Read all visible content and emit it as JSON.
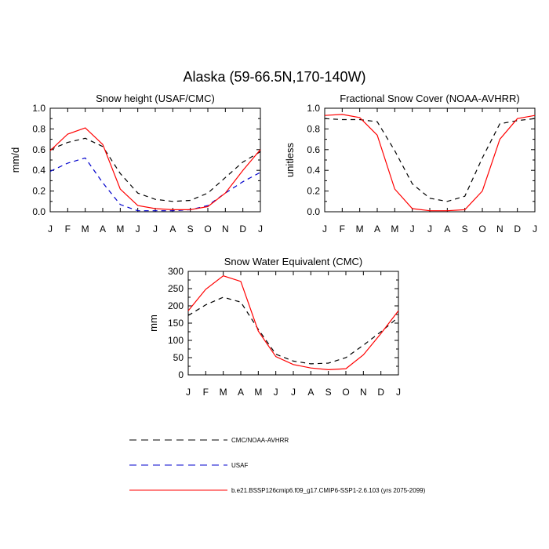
{
  "figure": {
    "title": "Alaska (59-66.5N,170-140W)"
  },
  "chart_data": [
    {
      "type": "line",
      "title": "Snow height (USAF/CMC)",
      "xlabel": "",
      "ylabel": "mm/d",
      "categories": [
        "J",
        "F",
        "M",
        "A",
        "M",
        "J",
        "J",
        "A",
        "S",
        "O",
        "N",
        "D",
        "J"
      ],
      "ylim": [
        0,
        1.0
      ],
      "yticks": [
        0.0,
        0.2,
        0.4,
        0.6,
        0.8,
        1.0
      ],
      "ytick_labels": [
        "0.0",
        "0.2",
        "0.4",
        "0.6",
        "0.8",
        "1.0"
      ],
      "grid": false,
      "series": [
        {
          "name": "CMC/NOAA-AVHRR",
          "color": "#000000",
          "dash": "dashed",
          "values": [
            0.6,
            0.67,
            0.71,
            0.63,
            0.37,
            0.18,
            0.12,
            0.1,
            0.11,
            0.18,
            0.33,
            0.48,
            0.58
          ]
        },
        {
          "name": "USAF",
          "color": "#0000cc",
          "dash": "dashed",
          "values": [
            0.39,
            0.47,
            0.52,
            0.28,
            0.07,
            0.01,
            0.01,
            0.01,
            0.02,
            0.06,
            0.18,
            0.29,
            0.38
          ]
        },
        {
          "name": "b.e21.BSSP126cmip6.f09_g17.CMIP6-SSP1-2.6.103 (yrs 2075-2099)",
          "color": "#ff0000",
          "dash": "solid",
          "values": [
            0.59,
            0.75,
            0.81,
            0.65,
            0.22,
            0.06,
            0.03,
            0.02,
            0.02,
            0.05,
            0.18,
            0.4,
            0.6
          ]
        }
      ]
    },
    {
      "type": "line",
      "title": "Fractional Snow Cover (NOAA-AVHRR)",
      "xlabel": "",
      "ylabel": "unitless",
      "categories": [
        "J",
        "F",
        "M",
        "A",
        "M",
        "J",
        "J",
        "A",
        "S",
        "O",
        "N",
        "D",
        "J"
      ],
      "ylim": [
        0,
        1.0
      ],
      "yticks": [
        0.0,
        0.2,
        0.4,
        0.6,
        0.8,
        1.0
      ],
      "ytick_labels": [
        "0.0",
        "0.2",
        "0.4",
        "0.6",
        "0.8",
        "1.0"
      ],
      "grid": false,
      "series": [
        {
          "name": "CMC/NOAA-AVHRR",
          "color": "#000000",
          "dash": "dashed",
          "values": [
            0.9,
            0.89,
            0.89,
            0.87,
            0.59,
            0.27,
            0.13,
            0.1,
            0.15,
            0.52,
            0.85,
            0.88,
            0.9
          ]
        },
        {
          "name": "b.e21.BSSP126cmip6.f09_g17.CMIP6-SSP1-2.6.103 (yrs 2075-2099)",
          "color": "#ff0000",
          "dash": "solid",
          "values": [
            0.93,
            0.94,
            0.91,
            0.74,
            0.22,
            0.03,
            0.01,
            0.01,
            0.02,
            0.2,
            0.7,
            0.9,
            0.93
          ]
        }
      ]
    },
    {
      "type": "line",
      "title": "Snow Water Equivalent (CMC)",
      "xlabel": "",
      "ylabel": "mm",
      "categories": [
        "J",
        "F",
        "M",
        "A",
        "M",
        "J",
        "J",
        "A",
        "S",
        "O",
        "N",
        "D",
        "J"
      ],
      "ylim": [
        0,
        300
      ],
      "yticks": [
        0,
        50,
        100,
        150,
        200,
        250,
        300
      ],
      "ytick_labels": [
        "0",
        "50",
        "100",
        "150",
        "200",
        "250",
        "300"
      ],
      "grid": false,
      "series": [
        {
          "name": "CMC/NOAA-AVHRR",
          "color": "#000000",
          "dash": "dashed",
          "values": [
            172,
            203,
            225,
            211,
            132,
            60,
            40,
            32,
            34,
            50,
            86,
            125,
            167
          ]
        },
        {
          "name": "b.e21.BSSP126cmip6.f09_g17.CMIP6-SSP1-2.6.103 (yrs 2075-2099)",
          "color": "#ff0000",
          "dash": "solid",
          "values": [
            186,
            248,
            287,
            271,
            127,
            53,
            30,
            20,
            15,
            18,
            58,
            120,
            186
          ]
        }
      ]
    }
  ],
  "legend": {
    "placement": "bottom",
    "entries": [
      {
        "label": "CMC/NOAA-AVHRR",
        "color": "#000000",
        "dash": "dashed"
      },
      {
        "label": "USAF",
        "color": "#0000cc",
        "dash": "dashed"
      },
      {
        "label": "b.e21.BSSP126cmip6.f09_g17.CMIP6-SSP1-2.6.103 (yrs 2075-2099)",
        "color": "#ff0000",
        "dash": "solid"
      }
    ]
  }
}
